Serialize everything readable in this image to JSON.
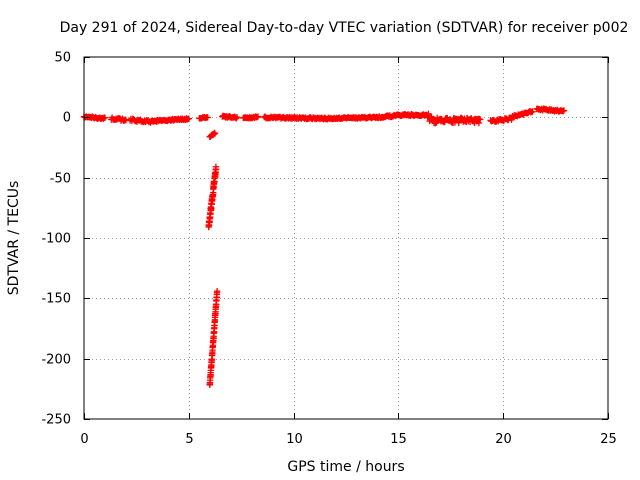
{
  "chart_data": {
    "type": "scatter",
    "title": "Day 291 of 2024, Sidereal Day-to-day VTEC variation (SDTVAR) for receiver p002",
    "xlabel": "GPS time / hours",
    "ylabel": "SDTVAR / TECUs",
    "xlim": [
      0,
      25
    ],
    "ylim": [
      -250,
      50
    ],
    "xticks": [
      0,
      5,
      10,
      15,
      20,
      25
    ],
    "yticks": [
      50,
      0,
      -50,
      -100,
      -150,
      -200,
      -250
    ],
    "xtick_labels": [
      "0",
      "5",
      "10",
      "15",
      "20",
      "25"
    ],
    "ytick_labels": [
      "50",
      "0",
      "-50",
      "-100",
      "-150",
      "-200",
      "-250"
    ],
    "grid": true,
    "marker": "+",
    "color": "#ff0000",
    "series": [
      {
        "name": "p002",
        "segments": [
          {
            "x0": 0.0,
            "x1": 1.0,
            "y0": 0.5,
            "y1": -1.0,
            "step": 0.04,
            "jitter": 1.5
          },
          {
            "x0": 1.3,
            "x1": 2.0,
            "y0": -1.0,
            "y1": -2.5,
            "step": 0.04,
            "jitter": 2.0
          },
          {
            "x0": 2.2,
            "x1": 3.3,
            "y0": -2.0,
            "y1": -4.0,
            "step": 0.04,
            "jitter": 2.0
          },
          {
            "x0": 3.3,
            "x1": 4.3,
            "y0": -3.0,
            "y1": -2.0,
            "step": 0.04,
            "jitter": 1.5
          },
          {
            "x0": 4.3,
            "x1": 5.0,
            "y0": -2.0,
            "y1": -1.0,
            "step": 0.04,
            "jitter": 1.5
          },
          {
            "x0": 5.5,
            "x1": 5.9,
            "y0": -0.5,
            "y1": 0.0,
            "step": 0.04,
            "jitter": 1.0
          },
          {
            "x0": 6.0,
            "x1": 6.25,
            "y0": -16.0,
            "y1": -13.0,
            "step": 0.03,
            "jitter": 1.0
          },
          {
            "x0": 5.95,
            "x1": 6.3,
            "y0": -90.0,
            "y1": -42.0,
            "step": 0.006,
            "jitter": 5.0
          },
          {
            "x0": 6.0,
            "x1": 6.35,
            "y0": -222.0,
            "y1": -145.0,
            "step": 0.006,
            "jitter": 2.0
          },
          {
            "x0": 6.6,
            "x1": 7.3,
            "y0": 1.0,
            "y1": -0.5,
            "step": 0.04,
            "jitter": 1.5
          },
          {
            "x0": 7.6,
            "x1": 8.3,
            "y0": 0.0,
            "y1": 0.0,
            "step": 0.04,
            "jitter": 1.5
          },
          {
            "x0": 8.6,
            "x1": 9.8,
            "y0": 0.0,
            "y1": -0.5,
            "step": 0.04,
            "jitter": 1.5
          },
          {
            "x0": 9.8,
            "x1": 11.5,
            "y0": -0.5,
            "y1": -1.0,
            "step": 0.04,
            "jitter": 1.5
          },
          {
            "x0": 11.5,
            "x1": 14.0,
            "y0": -1.0,
            "y1": 0.0,
            "step": 0.04,
            "jitter": 1.2
          },
          {
            "x0": 14.0,
            "x1": 15.3,
            "y0": 0.0,
            "y1": 2.0,
            "step": 0.04,
            "jitter": 1.5
          },
          {
            "x0": 15.3,
            "x1": 16.4,
            "y0": 2.0,
            "y1": 1.5,
            "step": 0.04,
            "jitter": 1.5
          },
          {
            "x0": 16.4,
            "x1": 17.0,
            "y0": 0.5,
            "y1": -4.0,
            "step": 0.03,
            "jitter": 6.0
          },
          {
            "x0": 17.0,
            "x1": 18.0,
            "y0": -3.0,
            "y1": -3.0,
            "step": 0.03,
            "jitter": 5.0
          },
          {
            "x0": 18.0,
            "x1": 18.9,
            "y0": -2.0,
            "y1": -3.0,
            "step": 0.03,
            "jitter": 4.0
          },
          {
            "x0": 19.4,
            "x1": 20.4,
            "y0": -3.0,
            "y1": -1.0,
            "step": 0.04,
            "jitter": 2.0
          },
          {
            "x0": 20.4,
            "x1": 21.4,
            "y0": 0.0,
            "y1": 5.0,
            "step": 0.04,
            "jitter": 2.0
          },
          {
            "x0": 21.6,
            "x1": 22.9,
            "y0": 7.0,
            "y1": 5.0,
            "step": 0.04,
            "jitter": 1.5
          }
        ]
      }
    ]
  }
}
